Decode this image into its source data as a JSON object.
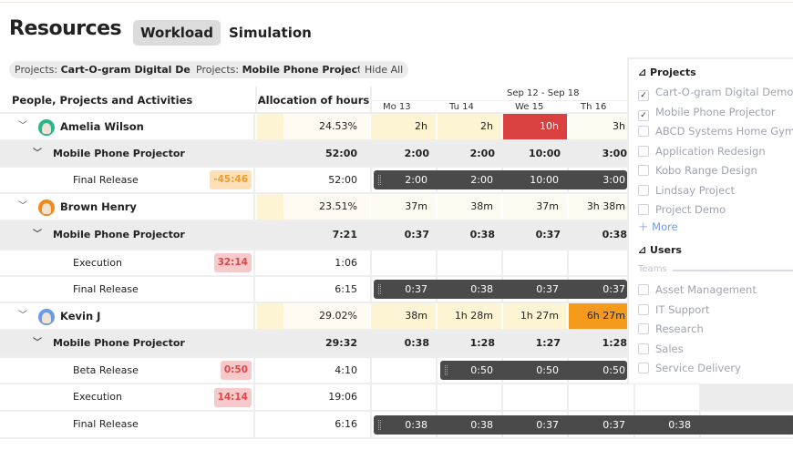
{
  "header": {
    "title": "Resources",
    "tabs": [
      {
        "label": "Workload",
        "active": true
      },
      {
        "label": "Simulation",
        "active": false
      }
    ]
  },
  "filters": [
    {
      "prefix": "Projects: ",
      "value": "Cart-O-gram Digital Demo"
    },
    {
      "prefix": "Projects: ",
      "value": "Mobile Phone Projector"
    },
    {
      "prefix": "",
      "value": "Hide All"
    }
  ],
  "table": {
    "col_name": "People, Projects and Activities",
    "col_alloc": "Allocation of hours",
    "week": "Sep 12 - Sep 18",
    "days": [
      "Mo 13",
      "Tu 14",
      "We 15",
      "Th 16"
    ],
    "rows": [
      {
        "type": "user",
        "label": "Amelia Wilson",
        "avatar": "#2bb58a",
        "alloc": "24.53%",
        "days": [
          "2h",
          "2h",
          "10h",
          "3h"
        ],
        "fills": [
          "#fdf4d3",
          "#fdf4d3",
          "#d94141",
          "#fdfaf2"
        ]
      },
      {
        "type": "project",
        "label": "Mobile Phone Projector",
        "alloc": "52:00",
        "days": [
          "2:00",
          "2:00",
          "10:00",
          "3:00"
        ]
      },
      {
        "type": "activity",
        "label": "Final Release",
        "badge": "-45:46",
        "badge_color": "orange",
        "alloc": "52:00",
        "bar_start": 0,
        "bar": [
          "2:00",
          "2:00",
          "10:00",
          "3:00"
        ]
      },
      {
        "type": "user",
        "label": "Brown Henry",
        "avatar": "#f08a1c",
        "alloc": "23.51%",
        "days": [
          "37m",
          "38m",
          "37m",
          "3h 38m"
        ],
        "fills": [
          "#fdfaf2",
          "#fdfaf2",
          "#fdfaf2",
          "#fdfaf2"
        ]
      },
      {
        "type": "project",
        "label": "Mobile Phone Projector",
        "alloc": "7:21",
        "days": [
          "0:37",
          "0:38",
          "0:37",
          "0:38"
        ]
      },
      {
        "type": "activity",
        "label": "Execution",
        "badge": "32:14",
        "badge_color": "red",
        "alloc": "1:06"
      },
      {
        "type": "activity",
        "label": "Final Release",
        "alloc": "6:15",
        "bar_start": 0,
        "bar": [
          "0:37",
          "0:38",
          "0:37",
          "0:37"
        ]
      },
      {
        "type": "user",
        "label": "Kevin J",
        "avatar": "#6a9be8",
        "alloc": "29.02%",
        "days": [
          "38m",
          "1h 28m",
          "1h 27m",
          "6h 27m"
        ],
        "fills": [
          "#fdf4d3",
          "#fdf4d3",
          "#fdf4d3",
          "#f59a1b"
        ]
      },
      {
        "type": "project",
        "label": "Mobile Phone Projector",
        "alloc": "29:32",
        "days": [
          "0:38",
          "1:28",
          "1:27",
          "1:28"
        ]
      },
      {
        "type": "activity",
        "label": "Beta Release",
        "badge": "0:50",
        "badge_color": "red",
        "alloc": "4:10",
        "bar_start": 1,
        "bar": [
          "0:50",
          "0:50",
          "0:50"
        ]
      },
      {
        "type": "activity",
        "label": "Execution",
        "badge": "14:14",
        "badge_color": "red",
        "alloc": "19:06"
      },
      {
        "type": "activity",
        "label": "Final Release",
        "alloc": "6:16",
        "bar_start": 0,
        "bar": [
          "0:38",
          "0:38",
          "0:37",
          "0:37",
          "0:38"
        ]
      }
    ]
  },
  "panel": {
    "projects_title": "Projects",
    "projects": [
      {
        "label": "Cart-O-gram Digital Demo",
        "checked": true
      },
      {
        "label": "Mobile Phone Projector",
        "checked": true
      },
      {
        "label": "ABCD Systems Home Gym",
        "checked": false
      },
      {
        "label": "Application Redesign",
        "checked": false
      },
      {
        "label": "Kobo Range Design",
        "checked": false
      },
      {
        "label": "Lindsay Project",
        "checked": false
      },
      {
        "label": "Project Demo",
        "checked": false
      }
    ],
    "more": "More",
    "users_title": "Users",
    "teams_label": "Teams",
    "teams": [
      "Asset Management",
      "IT Support",
      "Research",
      "Sales",
      "Service Delivery"
    ]
  }
}
